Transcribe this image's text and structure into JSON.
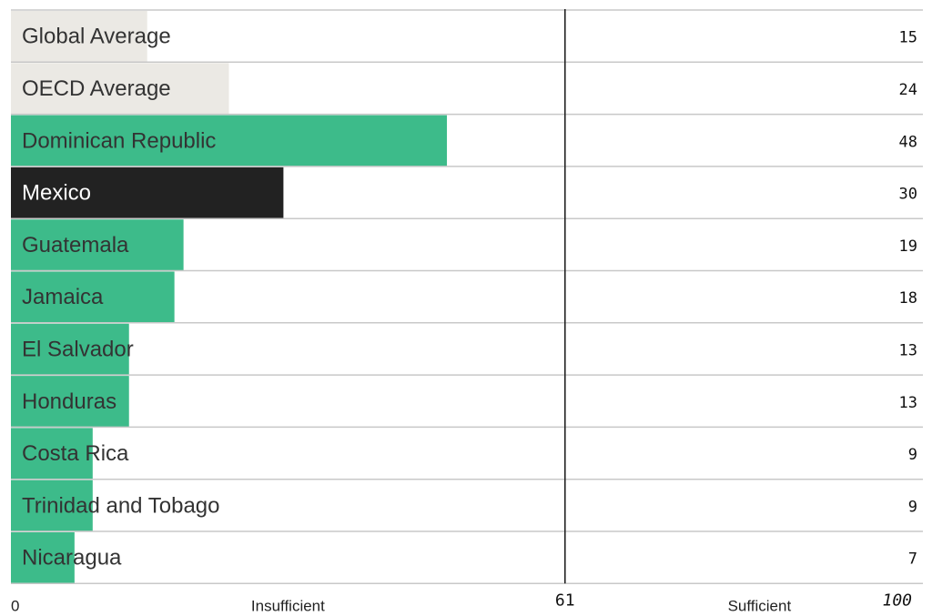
{
  "chart_data": {
    "type": "bar",
    "orientation": "horizontal",
    "categories": [
      "Global Average",
      "OECD Average",
      "Dominican Republic",
      "Mexico",
      "Guatemala",
      "Jamaica",
      "El Salvador",
      "Honduras",
      "Costa Rica",
      "Trinidad and Tobago",
      "Nicaragua"
    ],
    "values": [
      15,
      24,
      48,
      30,
      19,
      18,
      13,
      13,
      9,
      9,
      7
    ],
    "value_labels": [
      "15",
      "24",
      "48",
      "30",
      "19",
      "18",
      "13",
      "13",
      "9",
      "9",
      "7"
    ],
    "xlim": [
      0,
      100
    ],
    "threshold": 61,
    "axis": {
      "min_label": "0",
      "max_label": "100",
      "threshold_label": "61",
      "left_zone_label": "Insufficient",
      "right_zone_label": "Sufficient"
    },
    "colors": {
      "average": "#ebe9e4",
      "country": "#3dbb8a",
      "highlight": "#222222",
      "row_divider": "#c8c8c8",
      "threshold_line": "#222222",
      "text": "#333333",
      "highlight_text": "#ffffff"
    },
    "bar_color_keys": [
      "average",
      "average",
      "country",
      "highlight",
      "country",
      "country",
      "country",
      "country",
      "country",
      "country",
      "country"
    ]
  }
}
